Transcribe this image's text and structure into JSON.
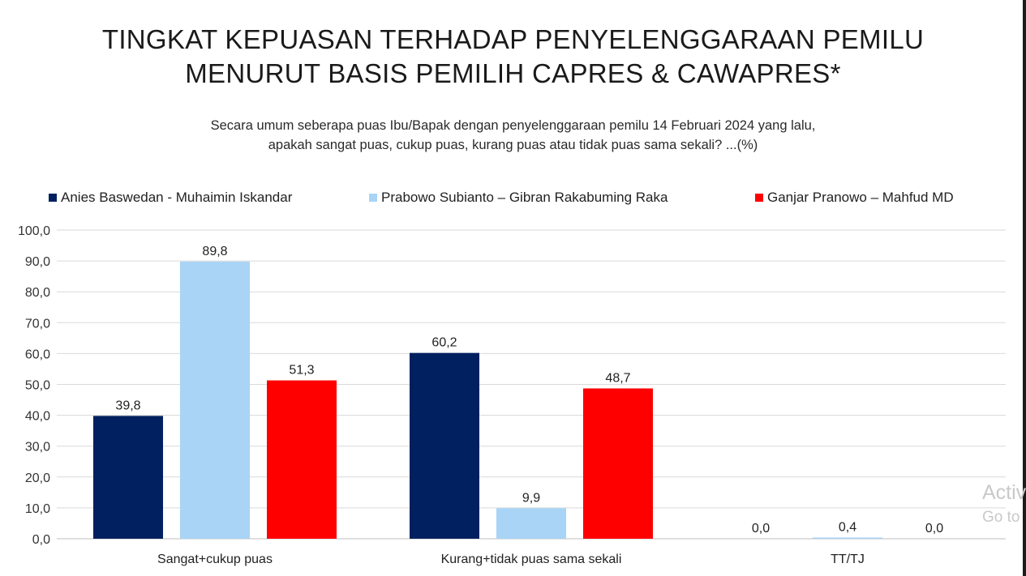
{
  "title_lines": [
    "TINGKAT KEPUASAN TERHADAP PENYELENGGARAAN PEMILU",
    "MENURUT BASIS PEMILIH CAPRES & CAWAPRES*"
  ],
  "subtitle_lines": [
    "Secara umum seberapa puas Ibu/Bapak dengan penyelenggaraan pemilu 14 Februari 2024 yang lalu,",
    "apakah sangat puas, cukup puas, kurang puas atau tidak puas sama sekali? ...(%)"
  ],
  "watermark": {
    "line1": "Activ",
    "line2": "Go to"
  },
  "chart_data": {
    "type": "bar",
    "title": "TINGKAT KEPUASAN TERHADAP PENYELENGGARAAN PEMILU MENURUT BASIS PEMILIH CAPRES & CAWAPRES*",
    "categories": [
      "Sangat+cukup puas",
      "Kurang+tidak puas sama sekali",
      "TT/TJ"
    ],
    "series": [
      {
        "name": "Anies Baswedan - Muhaimin Iskandar",
        "color": "#002060",
        "values": [
          39.8,
          60.2,
          0.0
        ],
        "labels": [
          "39,8",
          "60,2",
          "0,0"
        ]
      },
      {
        "name": "Prabowo Subianto – Gibran Rakabuming Raka",
        "color": "#a9d4f5",
        "values": [
          89.8,
          9.9,
          0.4
        ],
        "labels": [
          "89,8",
          "9,9",
          "0,4"
        ]
      },
      {
        "name": "Ganjar Pranowo – Mahfud MD",
        "color": "#ff0000",
        "values": [
          51.3,
          48.7,
          0.0
        ],
        "labels": [
          "51,3",
          "48,7",
          "0,0"
        ]
      }
    ],
    "ylim": [
      0,
      100
    ],
    "yticks": [
      "0,0",
      "10,0",
      "20,0",
      "30,0",
      "40,0",
      "50,0",
      "60,0",
      "70,0",
      "80,0",
      "90,0",
      "100,0"
    ],
    "grid": true,
    "legend_position": "top"
  }
}
